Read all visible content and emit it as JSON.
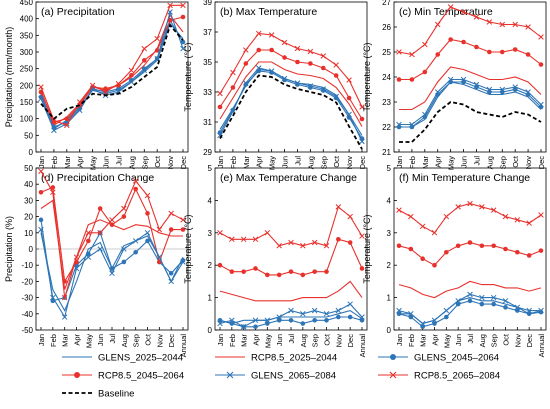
{
  "colors": {
    "glens": "#2e75b6",
    "rcp": "#e8312c",
    "baseline": "#000000",
    "frame": "#000000"
  },
  "months": [
    "Jan",
    "Feb",
    "Mar",
    "Apr",
    "May",
    "Jun",
    "Jul",
    "Aug",
    "Sep",
    "Oct",
    "Nov",
    "Dec"
  ],
  "months_annual": [
    "Jan",
    "Feb",
    "Mar",
    "Apr",
    "May",
    "Jun",
    "Jul",
    "Aug",
    "Sep",
    "Oct",
    "Nov",
    "Dec",
    "Annual"
  ],
  "legend": [
    {
      "name": "GLENS_2025–2044",
      "color": "#2e75b6",
      "marker": "none",
      "dash": false
    },
    {
      "name": "RCP8.5_2025–2044",
      "color": "#e8312c",
      "marker": "none",
      "dash": false
    },
    {
      "name": "GLENS_2045–2064",
      "color": "#2e75b6",
      "marker": "circle",
      "dash": false
    },
    {
      "name": "RCP8.5_2045–2064",
      "color": "#e8312c",
      "marker": "circle",
      "dash": false
    },
    {
      "name": "GLENS_2065–2084",
      "color": "#2e75b6",
      "marker": "x",
      "dash": false
    },
    {
      "name": "RCP8.5_2065–2084",
      "color": "#e8312c",
      "marker": "x",
      "dash": false
    },
    {
      "name": "Baseline",
      "color": "#000000",
      "marker": "none",
      "dash": true
    }
  ],
  "chart_data": [
    {
      "type": "line",
      "title": "(a) Precipitation",
      "ylabel": "Precipitation (mm/month)",
      "ylim": [
        0,
        450
      ],
      "yticks": [
        0,
        50,
        100,
        150,
        200,
        250,
        300,
        350,
        400,
        450
      ],
      "x": [
        "Jan",
        "Feb",
        "Mar",
        "Apr",
        "May",
        "Jun",
        "Jul",
        "Aug",
        "Sep",
        "Oct",
        "Nov",
        "Dec"
      ],
      "series": [
        {
          "name": "GLENS_2025–2044",
          "values": [
            175,
            70,
            95,
            135,
            185,
            175,
            185,
            210,
            240,
            275,
            385,
            340
          ]
        },
        {
          "name": "RCP8.5_2025–2044",
          "values": [
            185,
            80,
            105,
            145,
            195,
            185,
            200,
            225,
            260,
            310,
            410,
            360
          ]
        },
        {
          "name": "GLENS_2045–2064",
          "values": [
            165,
            75,
            90,
            130,
            190,
            180,
            190,
            215,
            250,
            280,
            395,
            330
          ]
        },
        {
          "name": "RCP8.5_2045–2064",
          "values": [
            180,
            90,
            100,
            140,
            195,
            190,
            200,
            230,
            275,
            305,
            395,
            405
          ]
        },
        {
          "name": "GLENS_2065–2084",
          "values": [
            160,
            65,
            85,
            125,
            190,
            170,
            180,
            210,
            245,
            280,
            420,
            310
          ]
        },
        {
          "name": "RCP8.5_2065–2084",
          "values": [
            195,
            95,
            80,
            150,
            200,
            180,
            205,
            245,
            310,
            340,
            440,
            440
          ]
        },
        {
          "name": "Baseline",
          "values": [
            145,
            100,
            130,
            140,
            175,
            170,
            175,
            195,
            225,
            255,
            380,
            335
          ]
        }
      ]
    },
    {
      "type": "line",
      "title": "(b) Max Temperature",
      "ylabel": "Temperature (°C)",
      "ylim": [
        29,
        39
      ],
      "yticks": [
        29,
        31,
        33,
        35,
        37,
        39
      ],
      "x": [
        "Jan",
        "Feb",
        "Mar",
        "Apr",
        "May",
        "Jun",
        "Jul",
        "Aug",
        "Sep",
        "Oct",
        "Nov",
        "Dec"
      ],
      "series": [
        {
          "name": "GLENS_2025–2044",
          "values": [
            30.5,
            31.9,
            33.4,
            34.5,
            34.4,
            33.9,
            33.6,
            33.5,
            33.3,
            32.8,
            31.5,
            30.1
          ]
        },
        {
          "name": "RCP8.5_2025–2044",
          "values": [
            31.2,
            32.6,
            34.0,
            35.0,
            35.0,
            34.5,
            34.2,
            34.1,
            33.9,
            33.3,
            32.2,
            30.7
          ]
        },
        {
          "name": "GLENS_2045–2064",
          "values": [
            30.3,
            31.8,
            33.5,
            34.4,
            34.3,
            33.8,
            33.5,
            33.3,
            33.1,
            32.6,
            31.3,
            29.9
          ]
        },
        {
          "name": "RCP8.5_2045–2064",
          "values": [
            32.0,
            33.3,
            34.9,
            35.8,
            35.8,
            35.3,
            35.0,
            34.9,
            34.6,
            34.1,
            32.6,
            31.2
          ]
        },
        {
          "name": "GLENS_2065–2084",
          "values": [
            30.1,
            31.7,
            33.6,
            34.6,
            34.4,
            33.9,
            33.6,
            33.4,
            33.2,
            32.7,
            31.5,
            29.7
          ]
        },
        {
          "name": "RCP8.5_2065–2084",
          "values": [
            32.9,
            34.3,
            35.8,
            36.9,
            36.8,
            36.3,
            35.9,
            35.7,
            35.4,
            34.8,
            33.8,
            32.0
          ]
        },
        {
          "name": "Baseline",
          "values": [
            29.9,
            31.4,
            33.0,
            34.1,
            34.0,
            33.5,
            33.2,
            33.0,
            32.8,
            32.3,
            30.7,
            29.2
          ]
        }
      ]
    },
    {
      "type": "line",
      "title": "(c) Min Temperature",
      "ylabel": "Temperature (°C)",
      "ylim": [
        21,
        27
      ],
      "yticks": [
        21,
        22,
        23,
        24,
        25,
        26,
        27
      ],
      "x": [
        "Jan",
        "Feb",
        "Mar",
        "Apr",
        "May",
        "Jun",
        "Jul",
        "Aug",
        "Sep",
        "Oct",
        "Nov",
        "Dec"
      ],
      "series": [
        {
          "name": "GLENS_2025–2044",
          "values": [
            22.0,
            22.0,
            22.3,
            23.2,
            23.8,
            23.7,
            23.5,
            23.3,
            23.3,
            23.4,
            23.2,
            22.7
          ]
        },
        {
          "name": "RCP8.5_2025–2044",
          "values": [
            22.7,
            22.7,
            23.0,
            23.8,
            24.4,
            24.3,
            24.1,
            23.9,
            23.9,
            24.0,
            23.8,
            23.3
          ]
        },
        {
          "name": "GLENS_2045–2064",
          "values": [
            22.0,
            22.0,
            22.4,
            23.3,
            23.8,
            23.8,
            23.6,
            23.4,
            23.4,
            23.5,
            23.3,
            22.8
          ]
        },
        {
          "name": "RCP8.5_2045–2064",
          "values": [
            23.9,
            23.9,
            24.2,
            24.9,
            25.5,
            25.4,
            25.2,
            25.0,
            25.0,
            25.1,
            24.9,
            24.5
          ]
        },
        {
          "name": "GLENS_2065–2084",
          "values": [
            22.1,
            22.1,
            22.5,
            23.4,
            23.9,
            23.9,
            23.7,
            23.5,
            23.5,
            23.6,
            23.4,
            22.9
          ]
        },
        {
          "name": "RCP8.5_2065–2084",
          "values": [
            25.0,
            24.9,
            25.3,
            26.1,
            26.8,
            26.6,
            26.4,
            26.2,
            26.1,
            26.1,
            26.0,
            25.6
          ]
        },
        {
          "name": "Baseline",
          "values": [
            21.4,
            21.4,
            21.9,
            22.6,
            23.0,
            22.9,
            22.6,
            22.5,
            22.4,
            22.6,
            22.5,
            22.2
          ]
        }
      ]
    },
    {
      "type": "line",
      "title": "(d) Precipitation Change",
      "ylabel": "Precipitation (%)",
      "ylim": [
        -50,
        50
      ],
      "yticks": [
        -50,
        -40,
        -30,
        -20,
        -10,
        0,
        10,
        20,
        30,
        40,
        50
      ],
      "x": [
        "Jan",
        "Feb",
        "Mar",
        "Apr",
        "May",
        "Jun",
        "Jul",
        "Aug",
        "Sep",
        "Oct",
        "Nov",
        "Dec",
        "Annual"
      ],
      "series": [
        {
          "name": "GLENS_2025–2044",
          "values": [
            10,
            -25,
            -38,
            -20,
            0,
            4,
            -12,
            2,
            5,
            8,
            -5,
            -20,
            -5
          ]
        },
        {
          "name": "RCP8.5_2025–2044",
          "values": [
            25,
            30,
            -25,
            -5,
            15,
            18,
            15,
            12,
            15,
            14,
            10,
            8,
            8
          ]
        },
        {
          "name": "GLENS_2045–2064",
          "values": [
            18,
            -32,
            -30,
            -10,
            -3,
            10,
            -12,
            -8,
            -2,
            5,
            -8,
            -15,
            -7
          ]
        },
        {
          "name": "RCP8.5_2045–2064",
          "values": [
            35,
            38,
            -20,
            -8,
            5,
            25,
            15,
            20,
            37,
            22,
            -8,
            12,
            12
          ]
        },
        {
          "name": "GLENS_2065–2084",
          "values": [
            12,
            -30,
            -42,
            -12,
            -5,
            0,
            -15,
            0,
            5,
            10,
            -5,
            -20,
            -8
          ]
        },
        {
          "name": "RCP8.5_2065–2084",
          "values": [
            48,
            35,
            -30,
            -5,
            10,
            10,
            18,
            25,
            42,
            33,
            12,
            22,
            18
          ]
        }
      ]
    },
    {
      "type": "line",
      "title": "(e) Max Temperature Change",
      "ylabel": "Temperature (°C)",
      "ylim": [
        0,
        5
      ],
      "yticks": [
        0,
        1,
        2,
        3,
        4,
        5
      ],
      "x": [
        "Jan",
        "Feb",
        "Mar",
        "Apr",
        "May",
        "Jun",
        "Jul",
        "Aug",
        "Sep",
        "Oct",
        "Nov",
        "Dec",
        "Annual"
      ],
      "series": [
        {
          "name": "GLENS_2025–2044",
          "values": [
            0.3,
            0.2,
            0.3,
            0.3,
            0.3,
            0.4,
            0.4,
            0.4,
            0.4,
            0.4,
            0.5,
            0.6,
            0.35
          ]
        },
        {
          "name": "RCP8.5_2025–2044",
          "values": [
            1.2,
            1.1,
            1.0,
            0.9,
            0.9,
            0.9,
            0.9,
            1.0,
            1.0,
            1.0,
            1.2,
            1.5,
            1.0
          ]
        },
        {
          "name": "GLENS_2045–2064",
          "values": [
            0.3,
            0.2,
            0.1,
            0.1,
            0.2,
            0.3,
            0.3,
            0.2,
            0.3,
            0.3,
            0.4,
            0.4,
            0.3
          ]
        },
        {
          "name": "RCP8.5_2045–2064",
          "values": [
            2.0,
            1.8,
            1.8,
            1.9,
            1.7,
            1.7,
            1.8,
            1.7,
            1.8,
            1.8,
            2.8,
            2.7,
            1.9
          ]
        },
        {
          "name": "GLENS_2065–2084",
          "values": [
            0.2,
            0.3,
            0.1,
            0.3,
            0.3,
            0.4,
            0.6,
            0.5,
            0.6,
            0.5,
            0.6,
            0.8,
            0.4
          ]
        },
        {
          "name": "RCP8.5_2065–2084",
          "values": [
            3.0,
            2.8,
            2.8,
            2.8,
            3.0,
            2.6,
            2.7,
            2.6,
            2.7,
            2.6,
            3.8,
            3.5,
            2.9
          ]
        }
      ]
    },
    {
      "type": "line",
      "title": "(f) Min Temperature Change",
      "ylabel": "Temperature (°C)",
      "ylim": [
        0,
        5
      ],
      "yticks": [
        0,
        1,
        2,
        3,
        4,
        5
      ],
      "x": [
        "Jan",
        "Feb",
        "Mar",
        "Apr",
        "May",
        "Jun",
        "Jul",
        "Aug",
        "Sep",
        "Oct",
        "Nov",
        "Dec",
        "Annual"
      ],
      "series": [
        {
          "name": "GLENS_2025–2044",
          "values": [
            0.5,
            0.5,
            0.2,
            0.3,
            0.6,
            0.9,
            1.0,
            0.9,
            0.9,
            0.8,
            0.7,
            0.5,
            0.6
          ]
        },
        {
          "name": "RCP8.5_2025–2044",
          "values": [
            1.4,
            1.3,
            1.1,
            1.0,
            1.2,
            1.3,
            1.5,
            1.4,
            1.4,
            1.3,
            1.3,
            1.2,
            1.3
          ]
        },
        {
          "name": "GLENS_2045–2064",
          "values": [
            0.5,
            0.4,
            0.1,
            0.2,
            0.4,
            0.8,
            0.9,
            0.8,
            0.8,
            0.7,
            0.6,
            0.5,
            0.55
          ]
        },
        {
          "name": "RCP8.5_2045–2064",
          "values": [
            2.6,
            2.5,
            2.2,
            2.0,
            2.4,
            2.6,
            2.7,
            2.6,
            2.6,
            2.5,
            2.4,
            2.3,
            2.45
          ]
        },
        {
          "name": "GLENS_2065–2084",
          "values": [
            0.6,
            0.5,
            0.2,
            0.3,
            0.6,
            0.9,
            1.1,
            1.0,
            1.0,
            0.9,
            0.7,
            0.6,
            0.6
          ]
        },
        {
          "name": "RCP8.5_2065–2084",
          "values": [
            3.7,
            3.5,
            3.2,
            3.0,
            3.5,
            3.8,
            3.9,
            3.8,
            3.7,
            3.5,
            3.4,
            3.3,
            3.55
          ]
        }
      ]
    }
  ]
}
